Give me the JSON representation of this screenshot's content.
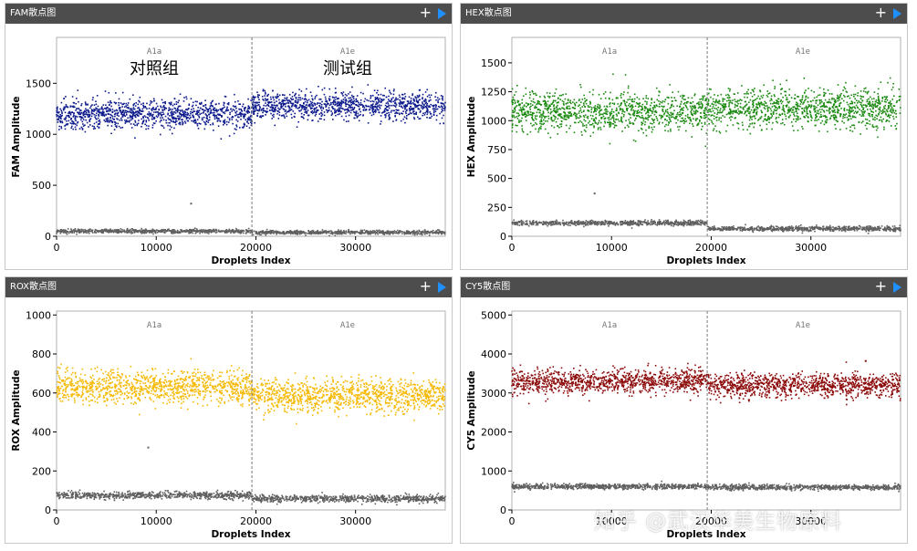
{
  "panels": [
    {
      "title": "FAM散点图",
      "icons": {
        "add": "plus-icon",
        "play": "play-icon"
      },
      "chart_data": {
        "type": "scatter",
        "xlabel": "Droplets Index",
        "ylabel": "FAM Amplitude",
        "xlim": [
          0,
          39000
        ],
        "ylim": [
          0,
          1950
        ],
        "xticks": [
          0,
          10000,
          20000,
          30000
        ],
        "yticks": [
          0,
          500,
          1000,
          1500
        ],
        "divider_x": 19600,
        "wells": [
          {
            "label": "A1a",
            "x_center": 9800
          },
          {
            "label": "A1e",
            "x_center": 29200
          }
        ],
        "group_labels": [
          {
            "text": "对照组",
            "x_center": 9800
          },
          {
            "text": "测试组",
            "x_center": 29200
          }
        ],
        "clusters": [
          {
            "color": "#0d1a8c",
            "segments": [
              {
                "x": [
                  0,
                  19600
                ],
                "y": 1200,
                "spread": 70
              },
              {
                "x": [
                  19600,
                  39000
                ],
                "y": 1280,
                "spread": 70
              }
            ]
          },
          {
            "color": "#5f5f5f",
            "segments": [
              {
                "x": [
                  0,
                  19600
                ],
                "y": 50,
                "spread": 10
              },
              {
                "x": [
                  19600,
                  39000
                ],
                "y": 38,
                "spread": 10
              }
            ]
          }
        ],
        "outliers": [
          {
            "x": 13500,
            "y": 320
          }
        ]
      }
    },
    {
      "title": "HEX散点图",
      "icons": {
        "add": "plus-icon",
        "play": "play-icon"
      },
      "chart_data": {
        "type": "scatter",
        "xlabel": "Droplets Index",
        "ylabel": "HEX Amplitude",
        "xlim": [
          0,
          39000
        ],
        "ylim": [
          0,
          1720
        ],
        "xticks": [
          0,
          10000,
          20000,
          30000
        ],
        "yticks": [
          0,
          250,
          500,
          750,
          1000,
          1250,
          1500
        ],
        "divider_x": 19600,
        "wells": [
          {
            "label": "A1a",
            "x_center": 9800
          },
          {
            "label": "A1e",
            "x_center": 29200
          }
        ],
        "group_labels": [],
        "clusters": [
          {
            "color": "#1c8a12",
            "segments": [
              {
                "x": [
                  0,
                  19600
                ],
                "y": 1080,
                "spread": 85
              },
              {
                "x": [
                  19600,
                  39000
                ],
                "y": 1110,
                "spread": 85
              }
            ]
          },
          {
            "color": "#5f5f5f",
            "segments": [
              {
                "x": [
                  0,
                  19600
                ],
                "y": 115,
                "spread": 10
              },
              {
                "x": [
                  19600,
                  39000
                ],
                "y": 65,
                "spread": 10
              }
            ]
          }
        ],
        "outliers": [
          {
            "x": 8300,
            "y": 370
          }
        ]
      }
    },
    {
      "title": "ROX散点图",
      "icons": {
        "add": "plus-icon",
        "play": "play-icon"
      },
      "chart_data": {
        "type": "scatter",
        "xlabel": "Droplets Index",
        "ylabel": "ROX Amplitude",
        "xlim": [
          0,
          39000
        ],
        "ylim": [
          0,
          1020
        ],
        "xticks": [
          0,
          10000,
          20000,
          30000
        ],
        "yticks": [
          0,
          200,
          400,
          600,
          800,
          1000
        ],
        "divider_x": 19600,
        "wells": [
          {
            "label": "A1a",
            "x_center": 9800
          },
          {
            "label": "A1e",
            "x_center": 29200
          }
        ],
        "group_labels": [],
        "clusters": [
          {
            "color": "#f6b800",
            "segments": [
              {
                "x": [
                  0,
                  19600
                ],
                "y": 630,
                "spread": 42
              },
              {
                "x": [
                  19600,
                  39000
                ],
                "y": 585,
                "spread": 42
              }
            ]
          },
          {
            "color": "#5f5f5f",
            "segments": [
              {
                "x": [
                  0,
                  19600
                ],
                "y": 75,
                "spread": 9
              },
              {
                "x": [
                  19600,
                  39000
                ],
                "y": 58,
                "spread": 9
              }
            ]
          }
        ],
        "outliers": [
          {
            "x": 9200,
            "y": 320
          }
        ]
      }
    },
    {
      "title": "CY5散点图",
      "icons": {
        "add": "plus-icon",
        "play": "play-icon"
      },
      "chart_data": {
        "type": "scatter",
        "xlabel": "Droplets Index",
        "ylabel": "CY5 Amplitude",
        "xlim": [
          0,
          39000
        ],
        "ylim": [
          0,
          5100
        ],
        "xticks": [
          0,
          10000,
          20000,
          30000
        ],
        "yticks": [
          0,
          1000,
          2000,
          3000,
          4000,
          5000
        ],
        "divider_x": 19600,
        "wells": [
          {
            "label": "A1a",
            "x_center": 9800
          },
          {
            "label": "A1e",
            "x_center": 29200
          }
        ],
        "group_labels": [],
        "clusters": [
          {
            "color": "#8c0a0a",
            "segments": [
              {
                "x": [
                  0,
                  19600
                ],
                "y": 3300,
                "spread": 160
              },
              {
                "x": [
                  19600,
                  39000
                ],
                "y": 3200,
                "spread": 160
              }
            ]
          },
          {
            "color": "#5f5f5f",
            "segments": [
              {
                "x": [
                  0,
                  19600
                ],
                "y": 600,
                "spread": 35
              },
              {
                "x": [
                  19600,
                  39000
                ],
                "y": 580,
                "spread": 35
              }
            ]
          }
        ],
        "outliers": [
          {
            "x": 35500,
            "y": 3820
          }
        ]
      }
    }
  ],
  "watermark": "知乎 @武汉华美生物原料"
}
